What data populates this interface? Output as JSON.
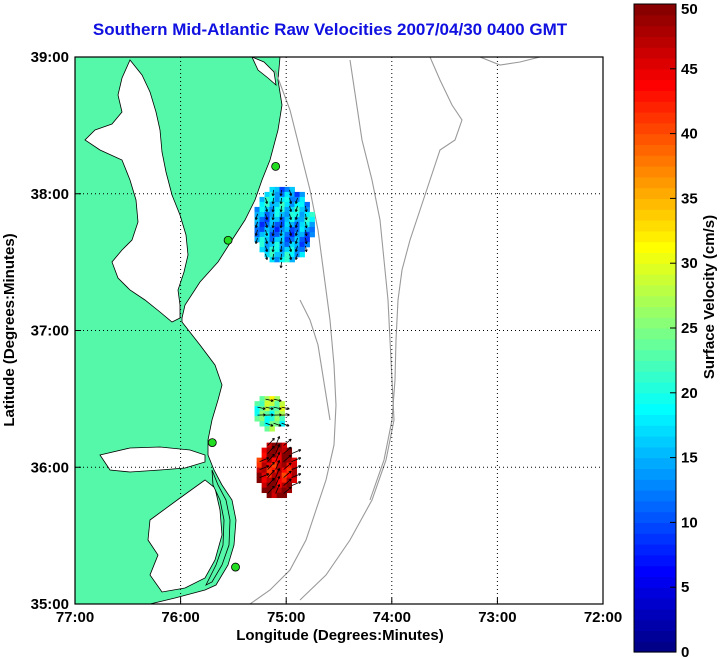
{
  "title": "Southern Mid-Atlantic Raw Velocities 2007/04/30 0400 GMT",
  "map": {
    "xlabel": "Longitude (Degrees:Minutes)",
    "ylabel": "Latitude (Degrees:Minutes)",
    "lon_range": [
      -77,
      -72
    ],
    "lat_range": [
      35,
      39
    ],
    "x_ticks": [
      {
        "lon": -77,
        "label": "77:00"
      },
      {
        "lon": -76,
        "label": "76:00"
      },
      {
        "lon": -75,
        "label": "75:00"
      },
      {
        "lon": -74,
        "label": "74:00"
      },
      {
        "lon": -73,
        "label": "73:00"
      },
      {
        "lon": -72,
        "label": "72:00"
      }
    ],
    "y_ticks": [
      {
        "lat": 39,
        "label": "39:00"
      },
      {
        "lat": 38,
        "label": "38:00"
      },
      {
        "lat": 37,
        "label": "37:00"
      },
      {
        "lat": 36,
        "label": "36:00"
      },
      {
        "lat": 35,
        "label": "35:00"
      }
    ],
    "grid": "dotted",
    "land_color": "#55f7a8",
    "radar_sites": [
      {
        "lon": -75.1,
        "lat": 38.2
      },
      {
        "lon": -75.55,
        "lat": 37.66
      },
      {
        "lon": -75.7,
        "lat": 36.18
      },
      {
        "lon": -75.48,
        "lat": 35.27
      }
    ],
    "velocity_patches": [
      {
        "name": "north-patch",
        "lon": [
          -75.3,
          -74.75
        ],
        "lat": [
          37.5,
          38.05
        ],
        "speed": 15
      },
      {
        "name": "mid-patch",
        "lon": [
          -75.3,
          -75.0
        ],
        "lat": [
          36.28,
          36.52
        ],
        "speed": 25
      },
      {
        "name": "south-patch",
        "lon": [
          -75.28,
          -74.9
        ],
        "lat": [
          35.78,
          36.18
        ],
        "speed": 47
      }
    ]
  },
  "colorbar": {
    "label": "Surface Velocity (cm/s)",
    "min": 0,
    "max": 50,
    "ticks": [
      "0",
      "5",
      "10",
      "15",
      "20",
      "25",
      "30",
      "35",
      "40",
      "45",
      "50"
    ],
    "colormap": "jet"
  }
}
